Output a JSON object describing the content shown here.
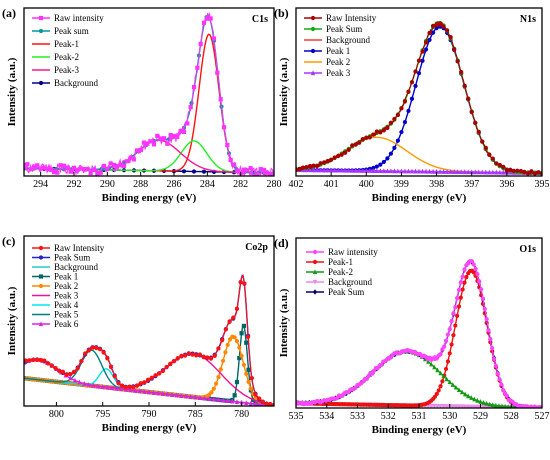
{
  "chart_data": [
    {
      "id": "a",
      "type": "line",
      "panel_label": "(a)",
      "title": "C1s",
      "xlabel": "Binding energy (eV)",
      "ylabel": "Intensity (a.u.)",
      "xlim": [
        295,
        280
      ],
      "xticks": [
        294,
        292,
        290,
        288,
        286,
        284,
        282,
        280
      ],
      "ylim": [
        0,
        1.1
      ],
      "grid": false,
      "legend_position": "top-left",
      "background": {
        "type": "linear",
        "x0": 295,
        "y0": 0.05,
        "x1": 280,
        "y1": 0.02
      },
      "series": [
        {
          "name": "Raw intensity",
          "role": "raw",
          "color": "#ff33ff",
          "marker": "square",
          "noise": 0.03,
          "every": 0.2
        },
        {
          "name": "Peak sum",
          "role": "sum",
          "color": "#009999",
          "marker": "circle",
          "every": 0.45
        },
        {
          "name": "Peak-1",
          "role": "peak",
          "color": "#ff1111",
          "center": 283.9,
          "amp": 0.9,
          "fwhm": 1.4
        },
        {
          "name": "Peak-2",
          "role": "peak",
          "color": "#22ee22",
          "center": 284.8,
          "amp": 0.2,
          "fwhm": 1.8
        },
        {
          "name": "Peak-3",
          "role": "peak",
          "color": "#ff1493",
          "center": 286.9,
          "amp": 0.2,
          "fwhm": 3.0
        },
        {
          "name": "Background",
          "role": "background",
          "color": "#000088",
          "marker": "circle",
          "every": 0.6
        }
      ]
    },
    {
      "id": "b",
      "type": "line",
      "panel_label": "(b)",
      "title": "N1s",
      "xlabel": "Binding energy (eV)",
      "ylabel": "Intensity (a.u.)",
      "xlim": [
        402,
        395
      ],
      "xticks": [
        402,
        401,
        400,
        399,
        398,
        397,
        396,
        395
      ],
      "ylim": [
        0,
        1.1
      ],
      "grid": false,
      "legend_position": "top-left",
      "background": {
        "type": "linear",
        "x0": 402,
        "y0": 0.04,
        "x1": 395,
        "y1": 0.02
      },
      "series": [
        {
          "name": "Raw Intensity",
          "role": "raw",
          "color": "#aa0000",
          "marker": "circle",
          "noise": 0.01,
          "every": 0.1
        },
        {
          "name": "Peak Sum",
          "role": "sum",
          "color": "#11aa11",
          "marker": "circle",
          "every": 0.1
        },
        {
          "name": "Background",
          "role": "background",
          "color": "#ff3333",
          "marker": "none",
          "every": 0.1
        },
        {
          "name": "Peak 1",
          "role": "peak",
          "color": "#0000cc",
          "center": 397.9,
          "amp": 0.95,
          "fwhm": 1.6,
          "marker": "circle",
          "every": 0.1
        },
        {
          "name": "Peak 2",
          "role": "peak",
          "color": "#ff9900",
          "center": 399.7,
          "amp": 0.22,
          "fwhm": 2.0
        },
        {
          "name": "Peak 3",
          "role": "peak",
          "color": "#aa33ff",
          "center": 401.0,
          "amp": 0.0,
          "fwhm": 1.0,
          "marker": "triangle",
          "every": 0.1
        }
      ]
    },
    {
      "id": "c",
      "type": "line",
      "panel_label": "(c)",
      "title": "Co2p",
      "xlabel": "Binding energy (eV)",
      "ylabel": "Intensity (a.u.)",
      "xlim": [
        803.5,
        776.5
      ],
      "xticks": [
        800,
        795,
        790,
        785,
        780
      ],
      "ylim": [
        0,
        1.1
      ],
      "grid": false,
      "legend_position": "top-left",
      "background": {
        "type": "linear",
        "x0": 803.5,
        "y0": 0.18,
        "x1": 776.5,
        "y1": 0.0
      },
      "series": [
        {
          "name": "Raw Intensity",
          "role": "raw",
          "color": "#ff1111",
          "marker": "circle",
          "noise": 0.008,
          "every": 0.4
        },
        {
          "name": "Peak Sum",
          "role": "sum",
          "color": "#2222cc",
          "marker": "circle",
          "every": 0.4
        },
        {
          "name": "Background",
          "role": "background",
          "color": "#22cccc",
          "marker": "none",
          "every": 0.4
        },
        {
          "name": "Peak 1",
          "role": "peak",
          "color": "#006666",
          "center": 779.8,
          "amp": 0.5,
          "fwhm": 1.0,
          "marker": "square",
          "every": 0.25
        },
        {
          "name": "Peak 2",
          "role": "peak",
          "color": "#ff8800",
          "center": 780.9,
          "amp": 0.42,
          "fwhm": 2.6,
          "marker": "circle",
          "every": 0.25
        },
        {
          "name": "Peak 3",
          "role": "peak",
          "color": "#ee1199",
          "center": 785.2,
          "amp": 0.28,
          "fwhm": 7.0
        },
        {
          "name": "Peak 4",
          "role": "peak",
          "color": "#00e5ee",
          "center": 794.6,
          "amp": 0.12,
          "fwhm": 1.8
        },
        {
          "name": "Peak 5",
          "role": "peak",
          "color": "#008080",
          "center": 796.2,
          "amp": 0.23,
          "fwhm": 2.6
        },
        {
          "name": "Peak 6",
          "role": "peak",
          "color": "#dd22dd",
          "center": 802.0,
          "amp": 0.13,
          "fwhm": 5.0,
          "marker": "triangle",
          "every": 0.5
        }
      ]
    },
    {
      "id": "d",
      "type": "line",
      "panel_label": "(d)",
      "title": "O1s",
      "xlabel": "Binding energy (eV)",
      "ylabel": "Intensity (a.u.)",
      "xlim": [
        535,
        527
      ],
      "xticks": [
        535,
        534,
        533,
        532,
        531,
        530,
        529,
        528,
        527
      ],
      "ylim": [
        0,
        1.1
      ],
      "grid": false,
      "legend_position": "top-left",
      "background": {
        "type": "linear",
        "x0": 535,
        "y0": 0.03,
        "x1": 527,
        "y1": 0.0
      },
      "series": [
        {
          "name": "Raw intensity",
          "role": "raw",
          "color": "#ff44ff",
          "marker": "circle",
          "noise": 0.008,
          "every": 0.06
        },
        {
          "name": "Peak-1",
          "role": "peak",
          "color": "#ee1111",
          "center": 529.3,
          "amp": 0.88,
          "fwhm": 1.2,
          "marker": "circle",
          "every": 0.06
        },
        {
          "name": "Peak-2",
          "role": "peak",
          "color": "#119911",
          "center": 531.4,
          "amp": 0.35,
          "fwhm": 2.6,
          "marker": "triangle",
          "every": 0.1
        },
        {
          "name": "Background",
          "role": "background",
          "color": "#ee88ee",
          "marker": "triangle-down",
          "every": 0.1
        },
        {
          "name": "Peak Sum",
          "role": "sum",
          "color": "#000077",
          "marker": "diamond",
          "every": 0.12
        }
      ]
    }
  ]
}
